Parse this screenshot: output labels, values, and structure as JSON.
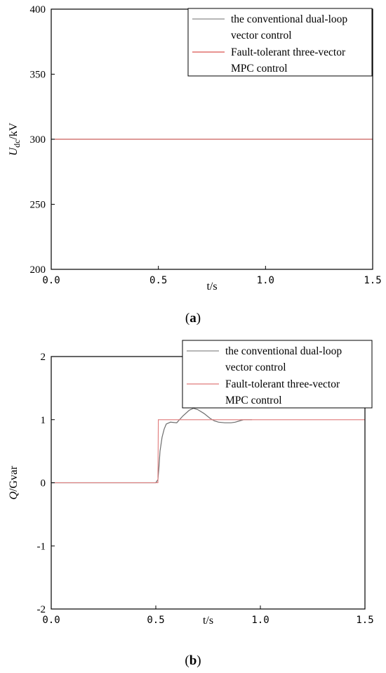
{
  "chart_data": [
    {
      "type": "line",
      "title": "",
      "xlabel": "t/s",
      "ylabel": {
        "symbol": "U",
        "subscript": "dc",
        "unit": "/kV"
      },
      "xlim": [
        0,
        1.5
      ],
      "ylim": [
        200,
        400
      ],
      "x_ticks": [
        "0.0",
        "0.5",
        "1.0",
        "1.5"
      ],
      "y_ticks": [
        "200",
        "250",
        "300",
        "350",
        "400"
      ],
      "legend": {
        "placement": "top-right",
        "entries": [
          {
            "lines": [
              "the conventional dual-loop",
              "vector control"
            ],
            "color": "#8c8c8c"
          },
          {
            "lines": [
              "Fault-tolerant three-vector",
              "MPC control"
            ],
            "color": "#d9534f"
          }
        ]
      },
      "series": [
        {
          "name": "the conventional dual-loop vector control",
          "color": "#8c8c8c",
          "x": [
            0,
            1.5
          ],
          "y": [
            300,
            300
          ]
        },
        {
          "name": "Fault-tolerant three-vector MPC control",
          "color": "#d9534f",
          "x": [
            0,
            1.5
          ],
          "y": [
            300,
            300
          ]
        }
      ],
      "caption": {
        "open": "(",
        "letter": "a",
        "close": ")"
      }
    },
    {
      "type": "line",
      "title": "",
      "xlabel": "t/s",
      "ylabel": {
        "symbol": "Q",
        "subscript": "",
        "unit": "/Gvar"
      },
      "xlim": [
        0,
        1.5
      ],
      "ylim": [
        -2,
        2
      ],
      "x_ticks": [
        "0.0",
        "0.5",
        "1.0",
        "1.5"
      ],
      "y_ticks": [
        "-2",
        "-1",
        "0",
        "1",
        "2"
      ],
      "legend": {
        "placement": "top-right",
        "entries": [
          {
            "lines": [
              "the conventional dual-loop",
              "vector control"
            ],
            "color": "#8c8c8c"
          },
          {
            "lines": [
              "Fault-tolerant three-vector",
              "MPC control"
            ],
            "color": "#e07a7a"
          }
        ]
      },
      "series": [
        {
          "name": "the conventional dual-loop vector control",
          "color": "#6e6e6e",
          "x": [
            0,
            0.5,
            0.51,
            0.515,
            0.52,
            0.53,
            0.54,
            0.55,
            0.57,
            0.6,
            0.63,
            0.66,
            0.68,
            0.7,
            0.73,
            0.76,
            0.78,
            0.8,
            0.83,
            0.86,
            0.88,
            0.9,
            0.92,
            0.94,
            0.96
          ],
          "y": [
            0,
            0,
            0.05,
            0.25,
            0.5,
            0.72,
            0.85,
            0.93,
            0.96,
            0.95,
            1.06,
            1.15,
            1.18,
            1.16,
            1.1,
            1.02,
            0.98,
            0.96,
            0.95,
            0.95,
            0.96,
            0.98,
            1.0,
            1.0,
            1.0
          ]
        },
        {
          "name": "Fault-tolerant three-vector MPC control",
          "color": "#e07a7a",
          "x": [
            0,
            0.51,
            0.512,
            1.5
          ],
          "y": [
            0,
            0,
            1,
            1
          ]
        }
      ],
      "caption": {
        "open": "(",
        "letter": "b",
        "close": ")"
      }
    }
  ]
}
